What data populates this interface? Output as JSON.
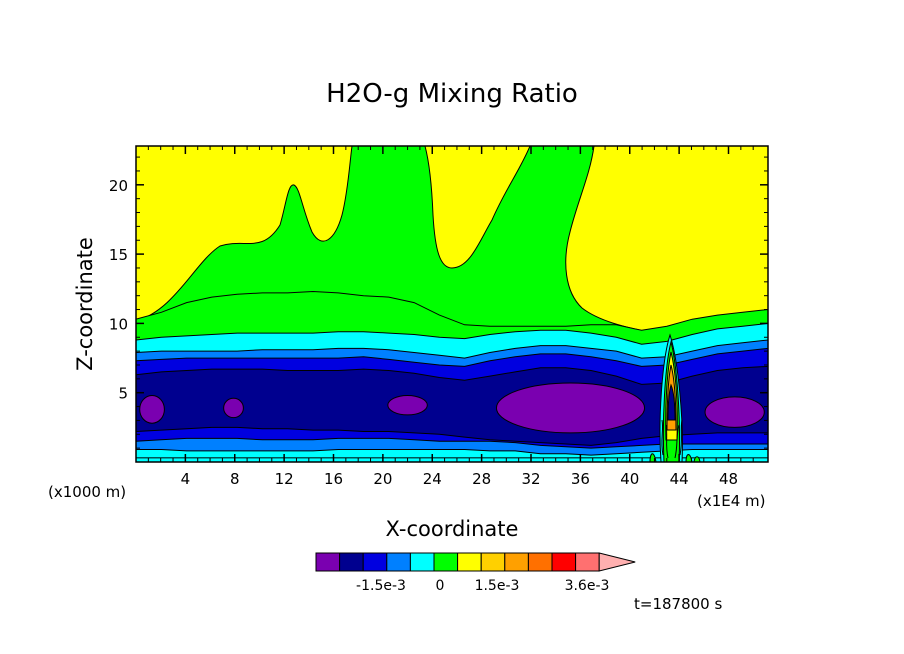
{
  "chart_data": {
    "type": "heatmap",
    "title": "H2O-g Mixing Ratio",
    "xlabel": "X-coordinate",
    "ylabel": "Z-coordinate",
    "x_unit_left": "(x1000 m)",
    "x_unit_right": "(x1E4 m)",
    "xlim": [
      0,
      51.2
    ],
    "ylim": [
      0,
      22.8
    ],
    "x_ticks": [
      4,
      8,
      12,
      16,
      20,
      24,
      28,
      32,
      36,
      40,
      44,
      48
    ],
    "y_ticks": [
      5,
      10,
      15,
      20
    ],
    "colorbar": {
      "colors": [
        "#7a00b0",
        "#00008f",
        "#0000e0",
        "#0080ff",
        "#00ffff",
        "#00ff00",
        "#ffff00",
        "#ffd000",
        "#ffa000",
        "#ff7000",
        "#ff0000",
        "#ff7070",
        "#ffb0b0"
      ],
      "tick_labels": [
        "-1.5e-3",
        "0",
        "1.5e-3",
        "3.6e-3"
      ]
    },
    "time_label": "t=187800 s",
    "bands": [
      {
        "color": "#00ffff",
        "top": [
          0.9,
          0.9,
          0.8,
          0.8,
          0.8,
          0.8,
          0.8,
          0.8,
          0.9,
          0.9,
          0.9,
          0.9,
          0.9,
          0.9,
          0.8,
          0.8,
          0.6,
          0.6,
          0.5,
          0.6,
          0.7,
          0.8,
          0.9,
          0.9,
          0.9,
          0.9
        ]
      },
      {
        "color": "#0080ff",
        "top": [
          1.5,
          1.6,
          1.7,
          1.7,
          1.7,
          1.6,
          1.6,
          1.6,
          1.7,
          1.7,
          1.7,
          1.6,
          1.5,
          1.5,
          1.5,
          1.4,
          1.2,
          1.1,
          1.0,
          1.1,
          1.2,
          1.3,
          1.3,
          1.3,
          1.3,
          1.3
        ]
      },
      {
        "color": "#0000e0",
        "top": [
          2.2,
          2.3,
          2.4,
          2.5,
          2.5,
          2.4,
          2.4,
          2.3,
          2.3,
          2.2,
          2.2,
          2.1,
          2.0,
          1.8,
          1.6,
          1.5,
          1.4,
          1.3,
          1.2,
          1.4,
          1.7,
          1.9,
          2.0,
          2.1,
          2.1,
          2.1
        ]
      },
      {
        "color": "#00008f",
        "top": [
          6.3,
          6.5,
          6.6,
          6.7,
          6.7,
          6.7,
          6.6,
          6.6,
          6.6,
          6.7,
          6.6,
          6.4,
          6.1,
          5.9,
          6.2,
          6.5,
          6.8,
          6.8,
          6.6,
          6.2,
          5.6,
          5.7,
          6.2,
          6.6,
          6.8,
          6.9
        ]
      },
      {
        "color": "#0000e0",
        "top": [
          7.3,
          7.4,
          7.5,
          7.5,
          7.5,
          7.5,
          7.5,
          7.5,
          7.5,
          7.6,
          7.4,
          7.2,
          7.0,
          6.9,
          7.3,
          7.6,
          7.8,
          7.8,
          7.6,
          7.3,
          6.9,
          7.0,
          7.4,
          7.8,
          8.0,
          8.2
        ]
      },
      {
        "color": "#0080ff",
        "top": [
          7.9,
          8.0,
          8.0,
          8.0,
          8.0,
          8.1,
          8.1,
          8.1,
          8.2,
          8.2,
          8.1,
          7.9,
          7.7,
          7.5,
          7.9,
          8.2,
          8.4,
          8.4,
          8.2,
          8.0,
          7.5,
          7.6,
          8.0,
          8.4,
          8.6,
          8.8
        ]
      },
      {
        "color": "#00ffff",
        "top": [
          8.8,
          9.0,
          9.1,
          9.2,
          9.3,
          9.3,
          9.3,
          9.3,
          9.4,
          9.4,
          9.3,
          9.2,
          9.0,
          8.9,
          9.2,
          9.4,
          9.5,
          9.5,
          9.3,
          9.0,
          8.5,
          8.7,
          9.2,
          9.6,
          9.8,
          10.0
        ]
      },
      {
        "color": "#00ff00",
        "top": [
          10.3,
          10.8,
          11.5,
          11.9,
          12.1,
          12.2,
          12.2,
          12.3,
          12.2,
          12.0,
          11.9,
          11.5,
          10.6,
          9.9,
          9.8,
          9.8,
          9.8,
          9.8,
          9.9,
          9.9,
          9.5,
          9.8,
          10.3,
          10.6,
          10.8,
          11.0
        ]
      }
    ],
    "purple_blobs": [
      {
        "x": 1.3,
        "z": 3.8,
        "rx": 1.0,
        "rz": 1.0
      },
      {
        "x": 7.9,
        "z": 3.9,
        "rx": 0.8,
        "rz": 0.7
      },
      {
        "x": 22.0,
        "z": 4.1,
        "rx": 1.6,
        "rz": 0.7
      },
      {
        "x": 35.2,
        "z": 3.9,
        "rx": 6.0,
        "rz": 1.8
      },
      {
        "x": 48.5,
        "z": 3.6,
        "rx": 2.4,
        "rz": 1.1
      }
    ]
  }
}
